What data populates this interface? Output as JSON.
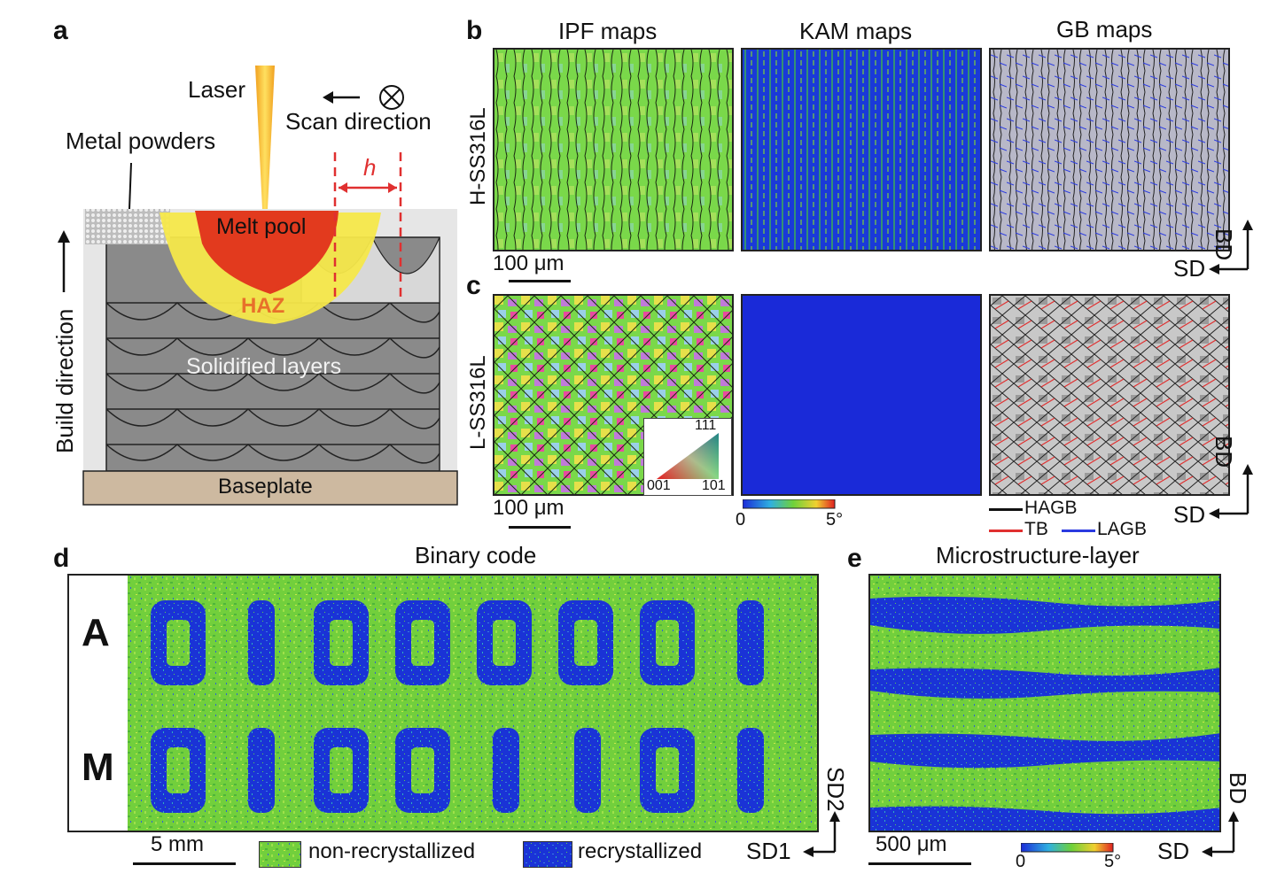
{
  "panel_a": {
    "label": "a",
    "laser": "Laser",
    "scan_direction": "Scan direction",
    "metal_powders": "Metal powders",
    "h": "h",
    "melt_pool": "Melt pool",
    "haz": "HAZ",
    "solidified_layers": "Solidified layers",
    "build_direction": "Build direction",
    "baseplate": "Baseplate"
  },
  "panel_b": {
    "label": "b",
    "col_ipf": "IPF maps",
    "col_kam": "KAM maps",
    "col_gb": "GB maps",
    "row_label": "H-SS316L",
    "scale": "100 μm",
    "axis_bd": "BD",
    "axis_sd": "SD"
  },
  "panel_c": {
    "label": "c",
    "row_label": "L-SS316L",
    "scale": "100 μm",
    "ipf_111": "111",
    "ipf_001": "001",
    "ipf_101": "101",
    "kam_min": "0",
    "kam_max": "5°",
    "legend_hagb": "HAGB",
    "legend_tb": "TB",
    "legend_lagb": "LAGB",
    "axis_bd": "BD",
    "axis_sd": "SD"
  },
  "panel_d": {
    "label": "d",
    "title": "Binary code",
    "row_a": "A",
    "row_m": "M",
    "code_a": [
      "0",
      "1",
      "0",
      "0",
      "0",
      "0",
      "0",
      "1"
    ],
    "code_m": [
      "0",
      "1",
      "0",
      "0",
      "1",
      "1",
      "0",
      "1"
    ],
    "scale": "5 mm",
    "legend_nonrec": "non-recrystallized",
    "legend_rec": "recrystallized",
    "axis_sd1": "SD1",
    "axis_sd2": "SD2"
  },
  "panel_e": {
    "label": "e",
    "title": "Microstructure-layer",
    "scale": "500 μm",
    "kam_min": "0",
    "kam_max": "5°",
    "axis_bd": "BD",
    "axis_sd": "SD"
  },
  "colors": {
    "green": "#6fd13a",
    "blue": "#1a33d6",
    "melt_pool": "#e23a1e",
    "haz": "#f5e84a",
    "red_dash": "#e03030"
  }
}
